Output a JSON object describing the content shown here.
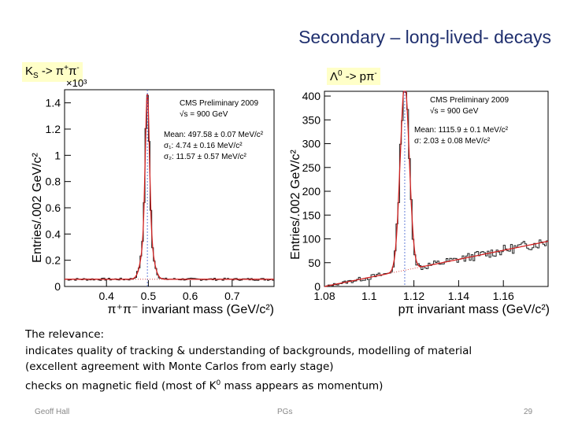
{
  "slide": {
    "title": "Secondary – long-lived- decays",
    "footer_left": "Geoff Hall",
    "footer_center": "PGs",
    "page_number": "29"
  },
  "labels": {
    "ks": {
      "main": "K",
      "sub": "S",
      "rest": " -> π",
      "sup1": "+",
      "mid": "π",
      "sup2": "-"
    },
    "lambda": {
      "main": "Λ",
      "sup0": "0",
      "rest": " -> pπ",
      "sup1": "-"
    }
  },
  "body": {
    "heading": "The relevance:",
    "line1": "indicates quality of tracking & understanding of backgrounds, modelling of material",
    "line2": "(excellent agreement with Monte Carlos from early stage)",
    "line3_pre": "checks on magnetic field (most of K",
    "line3_sup": "0",
    "line3_post": " mass appears as momentum)"
  },
  "chart_data": [
    {
      "type": "histogram",
      "id": "ks",
      "title": "CMS Preliminary 2009",
      "energy_label": "√s = 900 GeV",
      "stats": [
        "Mean: 497.58 ± 0.07 MeV/c²",
        "σ₁: 4.74 ± 0.16 MeV/c²",
        "σ₂: 11.57 ± 0.57 MeV/c²"
      ],
      "xlabel": "π⁺π⁻ invariant mass (GeV/c²)",
      "ylabel": "Entries/.002 GeV/c²",
      "y_multiplier": "×10³",
      "xlim": [
        0.3,
        0.8
      ],
      "ylim": [
        0,
        1500
      ],
      "x_ticks": [
        0.4,
        0.5,
        0.6,
        0.7
      ],
      "y_ticks": [
        0,
        200,
        400,
        600,
        800,
        1000,
        1200,
        1400
      ],
      "y_tick_labels": [
        "0",
        "0.2",
        "0.4",
        "0.6",
        "0.8",
        "1",
        "1.2",
        "1.4"
      ],
      "peak_x": 0.4976,
      "peak_y": 1470,
      "background_level": 55,
      "sigma1": 0.00474,
      "sigma2": 0.01157
    },
    {
      "type": "histogram",
      "id": "lambda",
      "title": "CMS Preliminary 2009",
      "energy_label": "√s = 900 GeV",
      "stats": [
        "Mean: 1115.9 ± 0.1 MeV/c²",
        "σ: 2.03 ± 0.08 MeV/c²"
      ],
      "xlabel": "pπ invariant mass (GeV/c²)",
      "ylabel": "Entries/.002 GeV/c²",
      "xlim": [
        1.08,
        1.18
      ],
      "ylim": [
        0,
        410
      ],
      "x_ticks": [
        1.08,
        1.1,
        1.12,
        1.14,
        1.16
      ],
      "y_ticks": [
        0,
        50,
        100,
        150,
        200,
        250,
        300,
        350,
        400
      ],
      "y_tick_labels": [
        "0",
        "50",
        "100",
        "150",
        "200",
        "250",
        "300",
        "350",
        "400"
      ],
      "peak_x": 1.1159,
      "peak_y": 390,
      "sigma": 0.00203,
      "background_start": [
        1.08,
        0
      ],
      "background_end": [
        1.18,
        95
      ]
    }
  ]
}
